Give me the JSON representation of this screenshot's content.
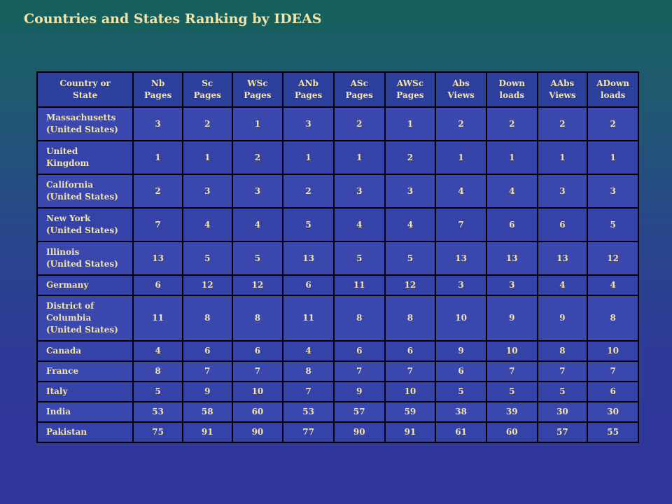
{
  "title": "Countries and States Ranking by IDEAS",
  "columns": [
    "Country or\nState",
    "Nb\nPages",
    "Sc\nPages",
    "WSc\nPages",
    "ANb\nPages",
    "ASc\nPages",
    "AWSc\nPages",
    "Abs\nViews",
    "Down\nloads",
    "AAbs\nViews",
    "ADown\nloads"
  ],
  "rows": [
    {
      "name": "Massachusetts\n(United States)",
      "values": [
        "3",
        "2",
        "1",
        "3",
        "2",
        "1",
        "2",
        "2",
        "2",
        "2"
      ]
    },
    {
      "name": "United\nKingdom",
      "values": [
        "1",
        "1",
        "2",
        "1",
        "1",
        "2",
        "1",
        "1",
        "1",
        "1"
      ]
    },
    {
      "name": "California\n(United States)",
      "values": [
        "2",
        "3",
        "3",
        "2",
        "3",
        "3",
        "4",
        "4",
        "3",
        "3"
      ]
    },
    {
      "name": "New York\n(United States)",
      "values": [
        "7",
        "4",
        "4",
        "5",
        "4",
        "4",
        "7",
        "6",
        "6",
        "5"
      ]
    },
    {
      "name": "Illinois\n(United States)",
      "values": [
        "13",
        "5",
        "5",
        "13",
        "5",
        "5",
        "13",
        "13",
        "13",
        "12"
      ]
    },
    {
      "name": "Germany",
      "values": [
        "6",
        "12",
        "12",
        "6",
        "11",
        "12",
        "3",
        "3",
        "4",
        "4"
      ]
    },
    {
      "name": "District of\nColumbia\n(United States)",
      "values": [
        "11",
        "8",
        "8",
        "11",
        "8",
        "8",
        "10",
        "9",
        "9",
        "8"
      ]
    },
    {
      "name": "Canada",
      "values": [
        "4",
        "6",
        "6",
        "4",
        "6",
        "6",
        "9",
        "10",
        "8",
        "10"
      ]
    },
    {
      "name": "France",
      "values": [
        "8",
        "7",
        "7",
        "8",
        "7",
        "7",
        "6",
        "7",
        "7",
        "7"
      ]
    },
    {
      "name": "Italy",
      "values": [
        "5",
        "9",
        "10",
        "7",
        "9",
        "10",
        "5",
        "5",
        "5",
        "6"
      ]
    },
    {
      "name": "India",
      "values": [
        "53",
        "58",
        "60",
        "53",
        "57",
        "59",
        "38",
        "39",
        "30",
        "30"
      ]
    },
    {
      "name": "Pakistan",
      "values": [
        "75",
        "91",
        "90",
        "77",
        "90",
        "91",
        "61",
        "60",
        "57",
        "55"
      ]
    }
  ],
  "colors": {
    "text": "#f2e3a8",
    "title_bar": "#155f5e",
    "table_bg": "#3542a8"
  }
}
